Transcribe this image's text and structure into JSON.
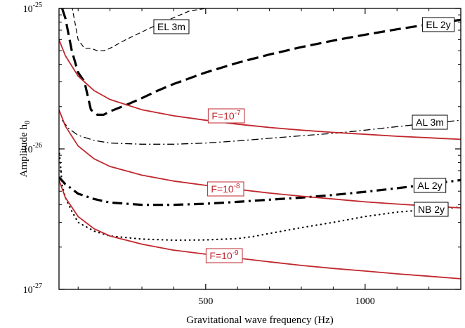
{
  "chart_data": {
    "type": "line",
    "xlabel": "Gravitational wave frequency (Hz)",
    "ylabel": "Amplitude h",
    "ylabel_sub": "0",
    "x_ticks": [
      {
        "value": 500,
        "label": "500"
      },
      {
        "value": 1000,
        "label": "1000"
      }
    ],
    "y_ticks": [
      {
        "value": 1e-25,
        "mant": "10",
        "exp": "-25"
      },
      {
        "value": 1e-26,
        "mant": "10",
        "exp": "-26"
      },
      {
        "value": 1e-27,
        "mant": "10",
        "exp": "-27"
      }
    ],
    "xlim": [
      40,
      1300
    ],
    "ylim": [
      1e-27,
      1e-25
    ],
    "y_scale": "log",
    "grid": false,
    "colors": {
      "sensitivity": "#000000",
      "fap": "#c0272d",
      "axis": "#000000"
    },
    "series": [
      {
        "name": "EL 3m",
        "style": "dashed-thin",
        "label_box": "EL 3m",
        "x": [
          40,
          60,
          80,
          100,
          120,
          140,
          160,
          180,
          200,
          250,
          300,
          350,
          400,
          450,
          500
        ],
        "y": [
          1.2e-25,
          1.1e-25,
          1.05e-25,
          6e-26,
          5.2e-26,
          5.2e-26,
          5e-26,
          5e-26,
          5.2e-26,
          6e-26,
          6.8e-26,
          7.7e-26,
          8.6e-26,
          9.6e-26,
          1e-25
        ]
      },
      {
        "name": "EL 2y",
        "style": "dashed-thick",
        "label_box": "EL 2y",
        "x": [
          50,
          60,
          80,
          100,
          120,
          140,
          160,
          180,
          200,
          250,
          300,
          350,
          400,
          500,
          600,
          700,
          800,
          900,
          1000,
          1100,
          1200,
          1300
        ],
        "y": [
          1e-25,
          8.5e-26,
          5e-26,
          3.5e-26,
          3e-26,
          1.9e-26,
          1.75e-26,
          1.75e-26,
          1.85e-26,
          2.05e-26,
          2.3e-26,
          2.6e-26,
          2.9e-26,
          3.5e-26,
          4.1e-26,
          4.7e-26,
          5.3e-26,
          5.9e-26,
          6.5e-26,
          7.1e-26,
          7.7e-26,
          8.3e-26
        ]
      },
      {
        "name": "AL 3m",
        "style": "dashdot-thin",
        "label_box": "AL 3m",
        "x": [
          50,
          70,
          100,
          150,
          200,
          300,
          400,
          500,
          600,
          700,
          800,
          900,
          1000,
          1100,
          1200,
          1300
        ],
        "y": [
          1.6e-26,
          1.4e-26,
          1.25e-26,
          1.15e-26,
          1.1e-26,
          1.08e-26,
          1.08e-26,
          1.1e-26,
          1.14e-26,
          1.19e-26,
          1.24e-26,
          1.29e-26,
          1.36e-26,
          1.44e-26,
          1.52e-26,
          1.6e-26
        ]
      },
      {
        "name": "AL 2y",
        "style": "dashdot-thick",
        "label_box": "AL 2y",
        "x": [
          40,
          60,
          80,
          100,
          150,
          200,
          300,
          400,
          500,
          600,
          700,
          800,
          900,
          1000,
          1100,
          1200,
          1300
        ],
        "y": [
          6.3e-27,
          5.6e-27,
          5.2e-27,
          4.8e-27,
          4.4e-27,
          4.15e-27,
          4e-27,
          4e-27,
          4.07e-27,
          4.2e-27,
          4.35e-27,
          4.5e-27,
          4.7e-27,
          4.95e-27,
          5.25e-27,
          5.6e-27,
          6e-27
        ]
      },
      {
        "name": "NB 2y",
        "style": "dotted",
        "label_box": "NB 2y",
        "x": [
          40,
          45,
          50,
          60,
          80,
          100,
          150,
          200,
          300,
          400,
          500,
          600,
          650,
          700,
          800,
          900,
          1000,
          1100,
          1200,
          1300
        ],
        "y": [
          1e-26,
          7.5e-27,
          5.5e-27,
          4.5e-27,
          3.6e-27,
          3e-27,
          2.6e-27,
          2.4e-27,
          2.28e-27,
          2.24e-27,
          2.25e-27,
          2.3e-27,
          2.38e-27,
          2.5e-27,
          2.75e-27,
          3e-27,
          3.3e-27,
          3.55e-27,
          3.7e-27,
          3.85e-27
        ]
      },
      {
        "name": "F=10^-7",
        "style": "solid-red",
        "label_box": "F=10",
        "label_exp": "-7",
        "x": [
          40,
          60,
          100,
          150,
          200,
          300,
          400,
          500,
          600,
          700,
          800,
          900,
          1000,
          1100,
          1200,
          1300
        ],
        "y": [
          6e-26,
          4.6e-26,
          3.3e-26,
          2.6e-26,
          2.25e-26,
          1.9e-26,
          1.72e-26,
          1.6e-26,
          1.5e-26,
          1.42e-26,
          1.36e-26,
          1.31e-26,
          1.27e-26,
          1.23e-26,
          1.2e-26,
          1.17e-26
        ]
      },
      {
        "name": "F=10^-8",
        "style": "solid-red",
        "label_box": "F=10",
        "label_exp": "-8",
        "x": [
          40,
          60,
          100,
          150,
          200,
          300,
          400,
          500,
          600,
          700,
          800,
          900,
          1000,
          1100,
          1200,
          1300
        ],
        "y": [
          1.9e-26,
          1.45e-26,
          1.05e-26,
          8.5e-27,
          7.5e-27,
          6.5e-27,
          5.9e-27,
          5.5e-27,
          5.15e-27,
          4.85e-27,
          4.6e-27,
          4.4e-27,
          4.2e-27,
          4.05e-27,
          3.92e-27,
          3.8e-27
        ]
      },
      {
        "name": "F=10^-9",
        "style": "solid-red",
        "label_box": "F=10",
        "label_exp": "-9",
        "x": [
          40,
          60,
          100,
          150,
          200,
          300,
          400,
          500,
          600,
          700,
          800,
          900,
          1000,
          1100,
          1200,
          1300
        ],
        "y": [
          6e-27,
          4.5e-27,
          3.3e-27,
          2.7e-27,
          2.4e-27,
          2.1e-27,
          1.9e-27,
          1.78e-27,
          1.67e-27,
          1.57e-27,
          1.48e-27,
          1.41e-27,
          1.35e-27,
          1.29e-27,
          1.24e-27,
          1.19e-27
        ]
      }
    ]
  }
}
